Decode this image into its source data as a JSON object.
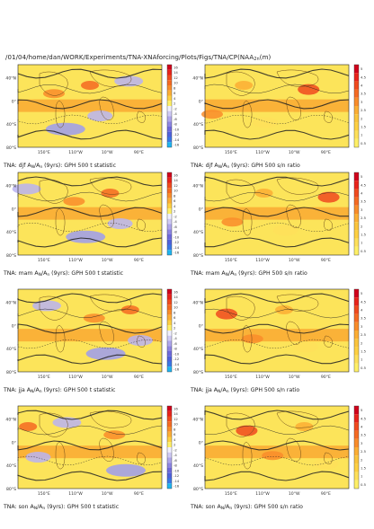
{
  "header": {
    "path": "/01/04/home/dan/WORK/Experiments/TNA-XNAforcing/Plots/Figs/TNA/CP(NAA",
    "path_suffix": "(m)"
  },
  "lat_ticks": [
    "40°N",
    "0°",
    "40°S",
    "80°S"
  ],
  "lon_ticks": [
    "150°E",
    "110°W",
    "10°W",
    "90°E"
  ],
  "colorbars": {
    "t_statistic": {
      "labels": [
        "16",
        "14",
        "12",
        "10",
        "8",
        "6",
        "4",
        "2",
        "-2",
        "-4",
        "-6",
        "-8",
        "-10",
        "-12",
        "-14",
        "-16"
      ],
      "colors": [
        "#d0021b",
        "#e8231b",
        "#f04a1e",
        "#f56a22",
        "#f98c2a",
        "#fcae34",
        "#fed042",
        "#fff066",
        "#f0f0ff",
        "#cfcaf5",
        "#aea6ec",
        "#8d85e3",
        "#6d69dc",
        "#4f62dd",
        "#3a78e6",
        "#1fb4f0"
      ]
    },
    "sn_ratio": {
      "labels": [
        "5",
        "4.5",
        "4",
        "3.5",
        "3",
        "2.5",
        "2",
        "1.5",
        "1",
        "0.5"
      ],
      "colors": [
        "#d0021b",
        "#e8231b",
        "#f04a1e",
        "#f56a22",
        "#f98c2a",
        "#fcae34",
        "#fbc43c",
        "#fed042",
        "#fee05a",
        "#fff066"
      ]
    }
  },
  "chart_data": [
    {
      "type": "heatmap",
      "season": "djf",
      "field": "t statistic",
      "title_parts": [
        "TNA: djf A",
        "N",
        "/A",
        "n",
        " (9yrs): GPH 500 t statistic"
      ],
      "clim": [
        -16,
        16
      ],
      "ylim": [
        "80°S",
        "60°N"
      ]
    },
    {
      "type": "heatmap",
      "season": "djf",
      "field": "s/n ratio",
      "title_parts": [
        "TNA: djf A",
        "N",
        "/A",
        "n",
        " (9yrs): GPH 500 s/n ratio"
      ],
      "clim": [
        0,
        5
      ],
      "ylim": [
        "80°S",
        "60°N"
      ]
    },
    {
      "type": "heatmap",
      "season": "mam",
      "field": "t statistic",
      "title_parts": [
        "TNA: mam A",
        "N",
        "/A",
        "n",
        " (9yrs): GPH 500 t statistic"
      ],
      "clim": [
        -16,
        16
      ],
      "ylim": [
        "80°S",
        "60°N"
      ]
    },
    {
      "type": "heatmap",
      "season": "mam",
      "field": "s/n ratio",
      "title_parts": [
        "TNA: mam A",
        "N",
        "/A",
        "n",
        " (9yrs): GPH 500 s/n ratio"
      ],
      "clim": [
        0,
        5
      ],
      "ylim": [
        "80°S",
        "60°N"
      ]
    },
    {
      "type": "heatmap",
      "season": "jja",
      "field": "t statistic",
      "title_parts": [
        "TNA: jja A",
        "N",
        "/A",
        "n",
        " (9yrs): GPH 500 t statistic"
      ],
      "clim": [
        -16,
        16
      ],
      "ylim": [
        "80°S",
        "60°N"
      ]
    },
    {
      "type": "heatmap",
      "season": "jja",
      "field": "s/n ratio",
      "title_parts": [
        "TNA: jja A",
        "N",
        "/A",
        "n",
        " (9yrs): GPH 500 s/n ratio"
      ],
      "clim": [
        0,
        5
      ],
      "ylim": [
        "80°S",
        "60°N"
      ]
    },
    {
      "type": "heatmap",
      "season": "son",
      "field": "t statistic",
      "title_parts": [
        "TNA: son A",
        "N",
        "/A",
        "n",
        " (9yrs): GPH 500 t statistic"
      ],
      "clim": [
        -16,
        16
      ],
      "ylim": [
        "80°S",
        "60°N"
      ]
    },
    {
      "type": "heatmap",
      "season": "son",
      "field": "s/n ratio",
      "title_parts": [
        "TNA: son A",
        "N",
        "/A",
        "n",
        " (9yrs): GPH 500 s/n ratio"
      ],
      "clim": [
        0,
        5
      ],
      "ylim": [
        "80°S",
        "60°N"
      ]
    }
  ]
}
